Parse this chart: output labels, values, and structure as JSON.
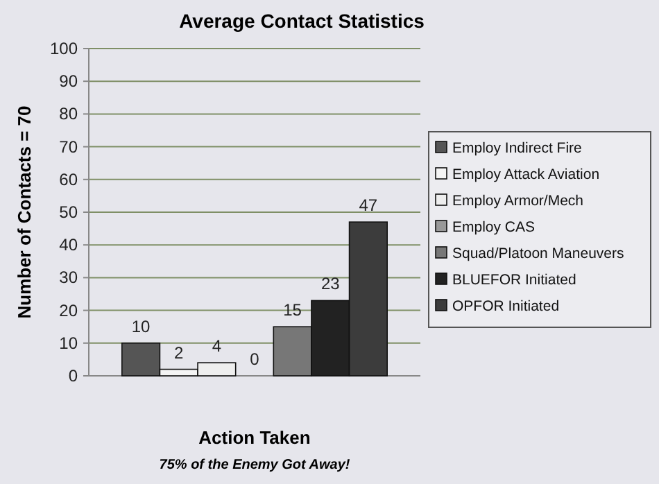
{
  "chart_data": {
    "type": "bar",
    "title": "Average Contact Statistics",
    "xlabel": "Action Taken",
    "ylabel": "Number of Contacts = 70",
    "annotations": [
      "75% of the Enemy Got Away!"
    ],
    "categories": [
      null
    ],
    "series": [
      {
        "name": "Employ Indirect Fire",
        "color": "#555555",
        "values": [
          10
        ]
      },
      {
        "name": "Employ Attack Aviation",
        "color": "#f4f4f4",
        "values": [
          2
        ]
      },
      {
        "name": "Employ Armor/Mech",
        "color": "#eeeeee",
        "values": [
          4
        ]
      },
      {
        "name": "Employ CAS",
        "color": "#999999",
        "values": [
          0
        ]
      },
      {
        "name": "Squad/Platoon Maneuvers",
        "color": "#777777",
        "values": [
          15
        ]
      },
      {
        "name": "BLUEFOR Initiated",
        "color": "#222222",
        "values": [
          23
        ]
      },
      {
        "name": "OPFOR Initiated",
        "color": "#3c3c3c",
        "values": [
          47
        ]
      }
    ],
    "ylim": [
      0,
      100
    ],
    "yticks": [
      0,
      10,
      20,
      30,
      40,
      50,
      60,
      70,
      80,
      90,
      100
    ],
    "grid": "y",
    "legend": "right",
    "data_labels": true
  }
}
